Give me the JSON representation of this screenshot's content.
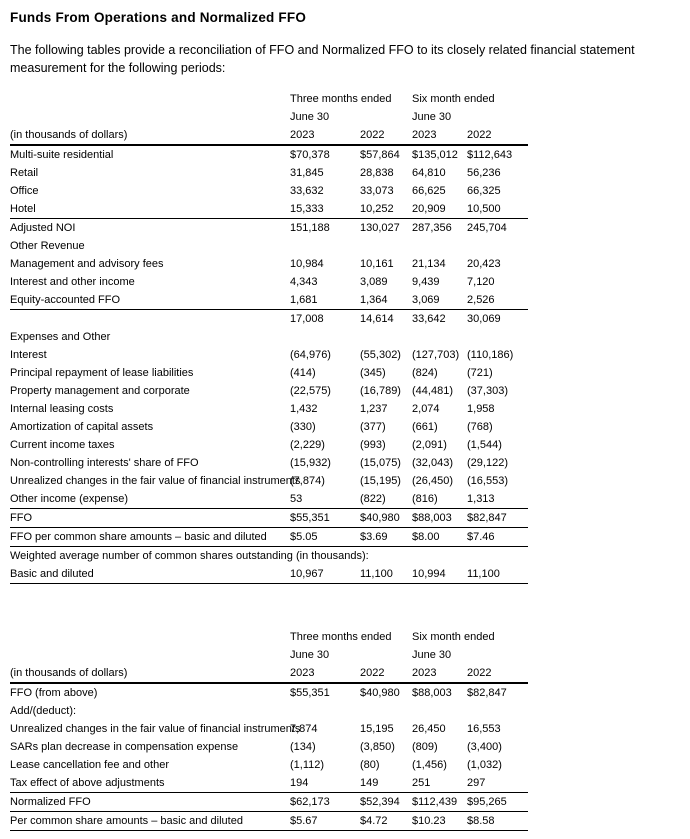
{
  "page": {
    "title": "Funds From Operations and Normalized FFO",
    "intro": "The following tables provide a reconciliation of FFO and Normalized FFO to its closely related financial statement measurement for the following periods:"
  },
  "tables": [
    {
      "name": "ffo-reconciliation-table",
      "header": {
        "corner_label": "(in thousands of dollars)",
        "groups": [
          {
            "label": "Three months ended",
            "sub": "June 30"
          },
          {
            "label": "Six month ended",
            "sub": "June 30"
          }
        ],
        "years": [
          "2023",
          "2022",
          "2023",
          "2022"
        ]
      },
      "rows": [
        {
          "label": "Multi-suite residential",
          "values": [
            "$70,378",
            "$57,864",
            "$135,012",
            "$112,643"
          ]
        },
        {
          "label": "Retail",
          "values": [
            "31,845",
            "28,838",
            "64,810",
            "56,236"
          ]
        },
        {
          "label": "Office",
          "values": [
            "33,632",
            "33,073",
            "66,625",
            "66,325"
          ]
        },
        {
          "label": "Hotel",
          "values": [
            "15,333",
            "10,252",
            "20,909",
            "10,500"
          ],
          "rule_below": true
        },
        {
          "label": "Adjusted NOI",
          "values": [
            "151,188",
            "130,027",
            "287,356",
            "245,704"
          ],
          "bold_label": true
        },
        {
          "label": "Other Revenue",
          "span": true,
          "bold_label": true
        },
        {
          "label": "Management and advisory fees",
          "values": [
            "10,984",
            "10,161",
            "21,134",
            "20,423"
          ]
        },
        {
          "label": "Interest and other income",
          "values": [
            "4,343",
            "3,089",
            "9,439",
            "7,120"
          ]
        },
        {
          "label": "Equity-accounted FFO",
          "values": [
            "1,681",
            "1,364",
            "3,069",
            "2,526"
          ],
          "rule_below": true
        },
        {
          "label": "",
          "values": [
            "17,008",
            "14,614",
            "33,642",
            "30,069"
          ]
        },
        {
          "label": "Expenses and Other",
          "span": true,
          "bold_label": true
        },
        {
          "label": "Interest",
          "values": [
            "(64,976)",
            "(55,302)",
            "(127,703)",
            "(110,186)"
          ]
        },
        {
          "label": "Principal repayment of lease liabilities",
          "values": [
            "(414)",
            "(345)",
            "(824)",
            "(721)"
          ]
        },
        {
          "label": "Property management and corporate",
          "values": [
            "(22,575)",
            "(16,789)",
            "(44,481)",
            "(37,303)"
          ]
        },
        {
          "label": "Internal leasing costs",
          "values": [
            "1,432",
            "1,237",
            "2,074",
            "1,958"
          ]
        },
        {
          "label": "Amortization of capital assets",
          "values": [
            "(330)",
            "(377)",
            "(661)",
            "(768)"
          ]
        },
        {
          "label": "Current income taxes",
          "values": [
            "(2,229)",
            "(993)",
            "(2,091)",
            "(1,544)"
          ]
        },
        {
          "label": "Non-controlling interests' share of FFO",
          "values": [
            "(15,932)",
            "(15,075)",
            "(32,043)",
            "(29,122)"
          ]
        },
        {
          "label": "Unrealized changes in the fair value of financial instruments",
          "values": [
            "(7,874)",
            "(15,195)",
            "(26,450)",
            "(16,553)"
          ]
        },
        {
          "label": "Other income (expense)",
          "values": [
            "53",
            "(822)",
            "(816)",
            "1,313"
          ],
          "rule_below": true
        },
        {
          "label": "FFO",
          "values": [
            "$55,351",
            "$40,980",
            "$88,003",
            "$82,847"
          ],
          "bold_label": true,
          "rule_below": true
        },
        {
          "label": "FFO per common share amounts – basic and diluted",
          "values": [
            "$5.05",
            "$3.69",
            "$8.00",
            "$7.46"
          ],
          "rule_below": true
        },
        {
          "label": "Weighted average number of common shares outstanding (in thousands):",
          "span": true
        },
        {
          "label": "Basic and diluted",
          "values": [
            "10,967",
            "11,100",
            "10,994",
            "11,100"
          ],
          "rule_below": true
        }
      ]
    },
    {
      "name": "normalized-ffo-table",
      "header": {
        "corner_label": "(in thousands of dollars)",
        "groups": [
          {
            "label": "Three months ended",
            "sub": "June 30"
          },
          {
            "label": "Six month ended",
            "sub": "June 30"
          }
        ],
        "years": [
          "2023",
          "2022",
          "2023",
          "2022"
        ]
      },
      "rows": [
        {
          "label": "FFO (from above)",
          "values": [
            "$55,351",
            "$40,980",
            "$88,003",
            "$82,847"
          ]
        },
        {
          "label": "Add/(deduct):",
          "span": true
        },
        {
          "label": "Unrealized changes in the fair value of financial instruments",
          "values": [
            "7,874",
            "15,195",
            "26,450",
            "16,553"
          ]
        },
        {
          "label": "SARs plan decrease in compensation expense",
          "values": [
            "(134)",
            "(3,850)",
            "(809)",
            "(3,400)"
          ]
        },
        {
          "label": "Lease cancellation fee and other",
          "values": [
            "(1,112)",
            "(80)",
            "(1,456)",
            "(1,032)"
          ]
        },
        {
          "label": "Tax effect of above adjustments",
          "values": [
            "194",
            "149",
            "251",
            "297"
          ],
          "rule_below": true
        },
        {
          "label": "Normalized FFO",
          "values": [
            "$62,173",
            "$52,394",
            "$112,439",
            "$95,265"
          ],
          "bold_label": true,
          "rule_below": true
        },
        {
          "label": "Per common share amounts – basic and diluted",
          "values": [
            "$5.67",
            "$4.72",
            "$10.23",
            "$8.58"
          ],
          "rule_below": true
        }
      ]
    }
  ]
}
